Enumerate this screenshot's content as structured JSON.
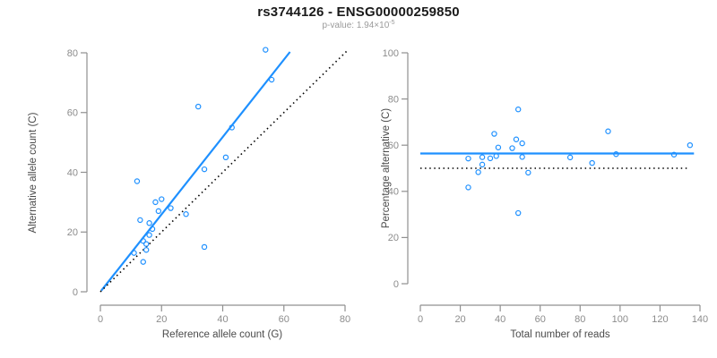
{
  "header": {
    "title": "rs3744126 - ENSG00000259850",
    "subtitle_prefix": "p-value: 1.94×10",
    "subtitle_exponent": "-5"
  },
  "palette": {
    "accent": "#1E90FF",
    "axis_line": "#909090",
    "tick_text": "#8c8c8c",
    "axis_title_text": "#4a4a4a",
    "dotted_line": "#000000"
  },
  "chart_data": [
    {
      "type": "scatter",
      "xlabel": "Reference allele count (G)",
      "ylabel": "Alternative allele count (C)",
      "xlim": [
        0,
        80
      ],
      "ylim": [
        0,
        80
      ],
      "xticks": [
        0,
        20,
        40,
        60,
        80
      ],
      "yticks": [
        0,
        20,
        40,
        60,
        80
      ],
      "grid": false,
      "legend": false,
      "points": [
        [
          54,
          81
        ],
        [
          56,
          71
        ],
        [
          32,
          62
        ],
        [
          43,
          55
        ],
        [
          41,
          45
        ],
        [
          34,
          41
        ],
        [
          12,
          37
        ],
        [
          20,
          31
        ],
        [
          18,
          30
        ],
        [
          23,
          28
        ],
        [
          19,
          27
        ],
        [
          28,
          26
        ],
        [
          13,
          24
        ],
        [
          16,
          23
        ],
        [
          17,
          21
        ],
        [
          16,
          19
        ],
        [
          14,
          17
        ],
        [
          15,
          16
        ],
        [
          15,
          14
        ],
        [
          11,
          13
        ],
        [
          14,
          10
        ],
        [
          34,
          15
        ]
      ],
      "lines": [
        {
          "name": "fit-line",
          "x1": 0.3,
          "y1": 0.4,
          "x2": 62,
          "y2": 80.3,
          "color": "accent",
          "width": 2.2,
          "dash": null
        },
        {
          "name": "identity-line",
          "x1": 0,
          "y1": 0,
          "x2": 81,
          "y2": 81,
          "color": "#000000",
          "width": 1.6,
          "dash": "1.5 3.6"
        }
      ]
    },
    {
      "type": "scatter",
      "xlabel": "Total number of reads",
      "ylabel": "Percentage alternative (C)",
      "xlim": [
        0,
        140
      ],
      "ylim": [
        0,
        100
      ],
      "xticks": [
        0,
        20,
        40,
        60,
        80,
        100,
        120,
        140
      ],
      "yticks": [
        0,
        20,
        40,
        60,
        80,
        100
      ],
      "grid": false,
      "legend": false,
      "points": [
        [
          135,
          60.0
        ],
        [
          127,
          55.9
        ],
        [
          94,
          66.0
        ],
        [
          98,
          56.1
        ],
        [
          86,
          52.3
        ],
        [
          75,
          54.7
        ],
        [
          49,
          75.5
        ],
        [
          51,
          60.8
        ],
        [
          48,
          62.5
        ],
        [
          51,
          54.9
        ],
        [
          46,
          58.7
        ],
        [
          54,
          48.1
        ],
        [
          37,
          64.9
        ],
        [
          39,
          59.0
        ],
        [
          38,
          55.3
        ],
        [
          35,
          54.3
        ],
        [
          31,
          54.8
        ],
        [
          31,
          51.6
        ],
        [
          29,
          48.3
        ],
        [
          24,
          54.2
        ],
        [
          24,
          41.7
        ],
        [
          49,
          30.6
        ]
      ],
      "lines": [
        {
          "name": "mean-line",
          "x1": 0,
          "y1": 56.4,
          "x2": 137,
          "y2": 56.4,
          "color": "accent",
          "width": 2.2,
          "dash": null
        },
        {
          "name": "null-line",
          "x1": 0,
          "y1": 50,
          "x2": 135,
          "y2": 50,
          "color": "#000000",
          "width": 1.6,
          "dash": "1.5 3.6"
        }
      ]
    }
  ]
}
